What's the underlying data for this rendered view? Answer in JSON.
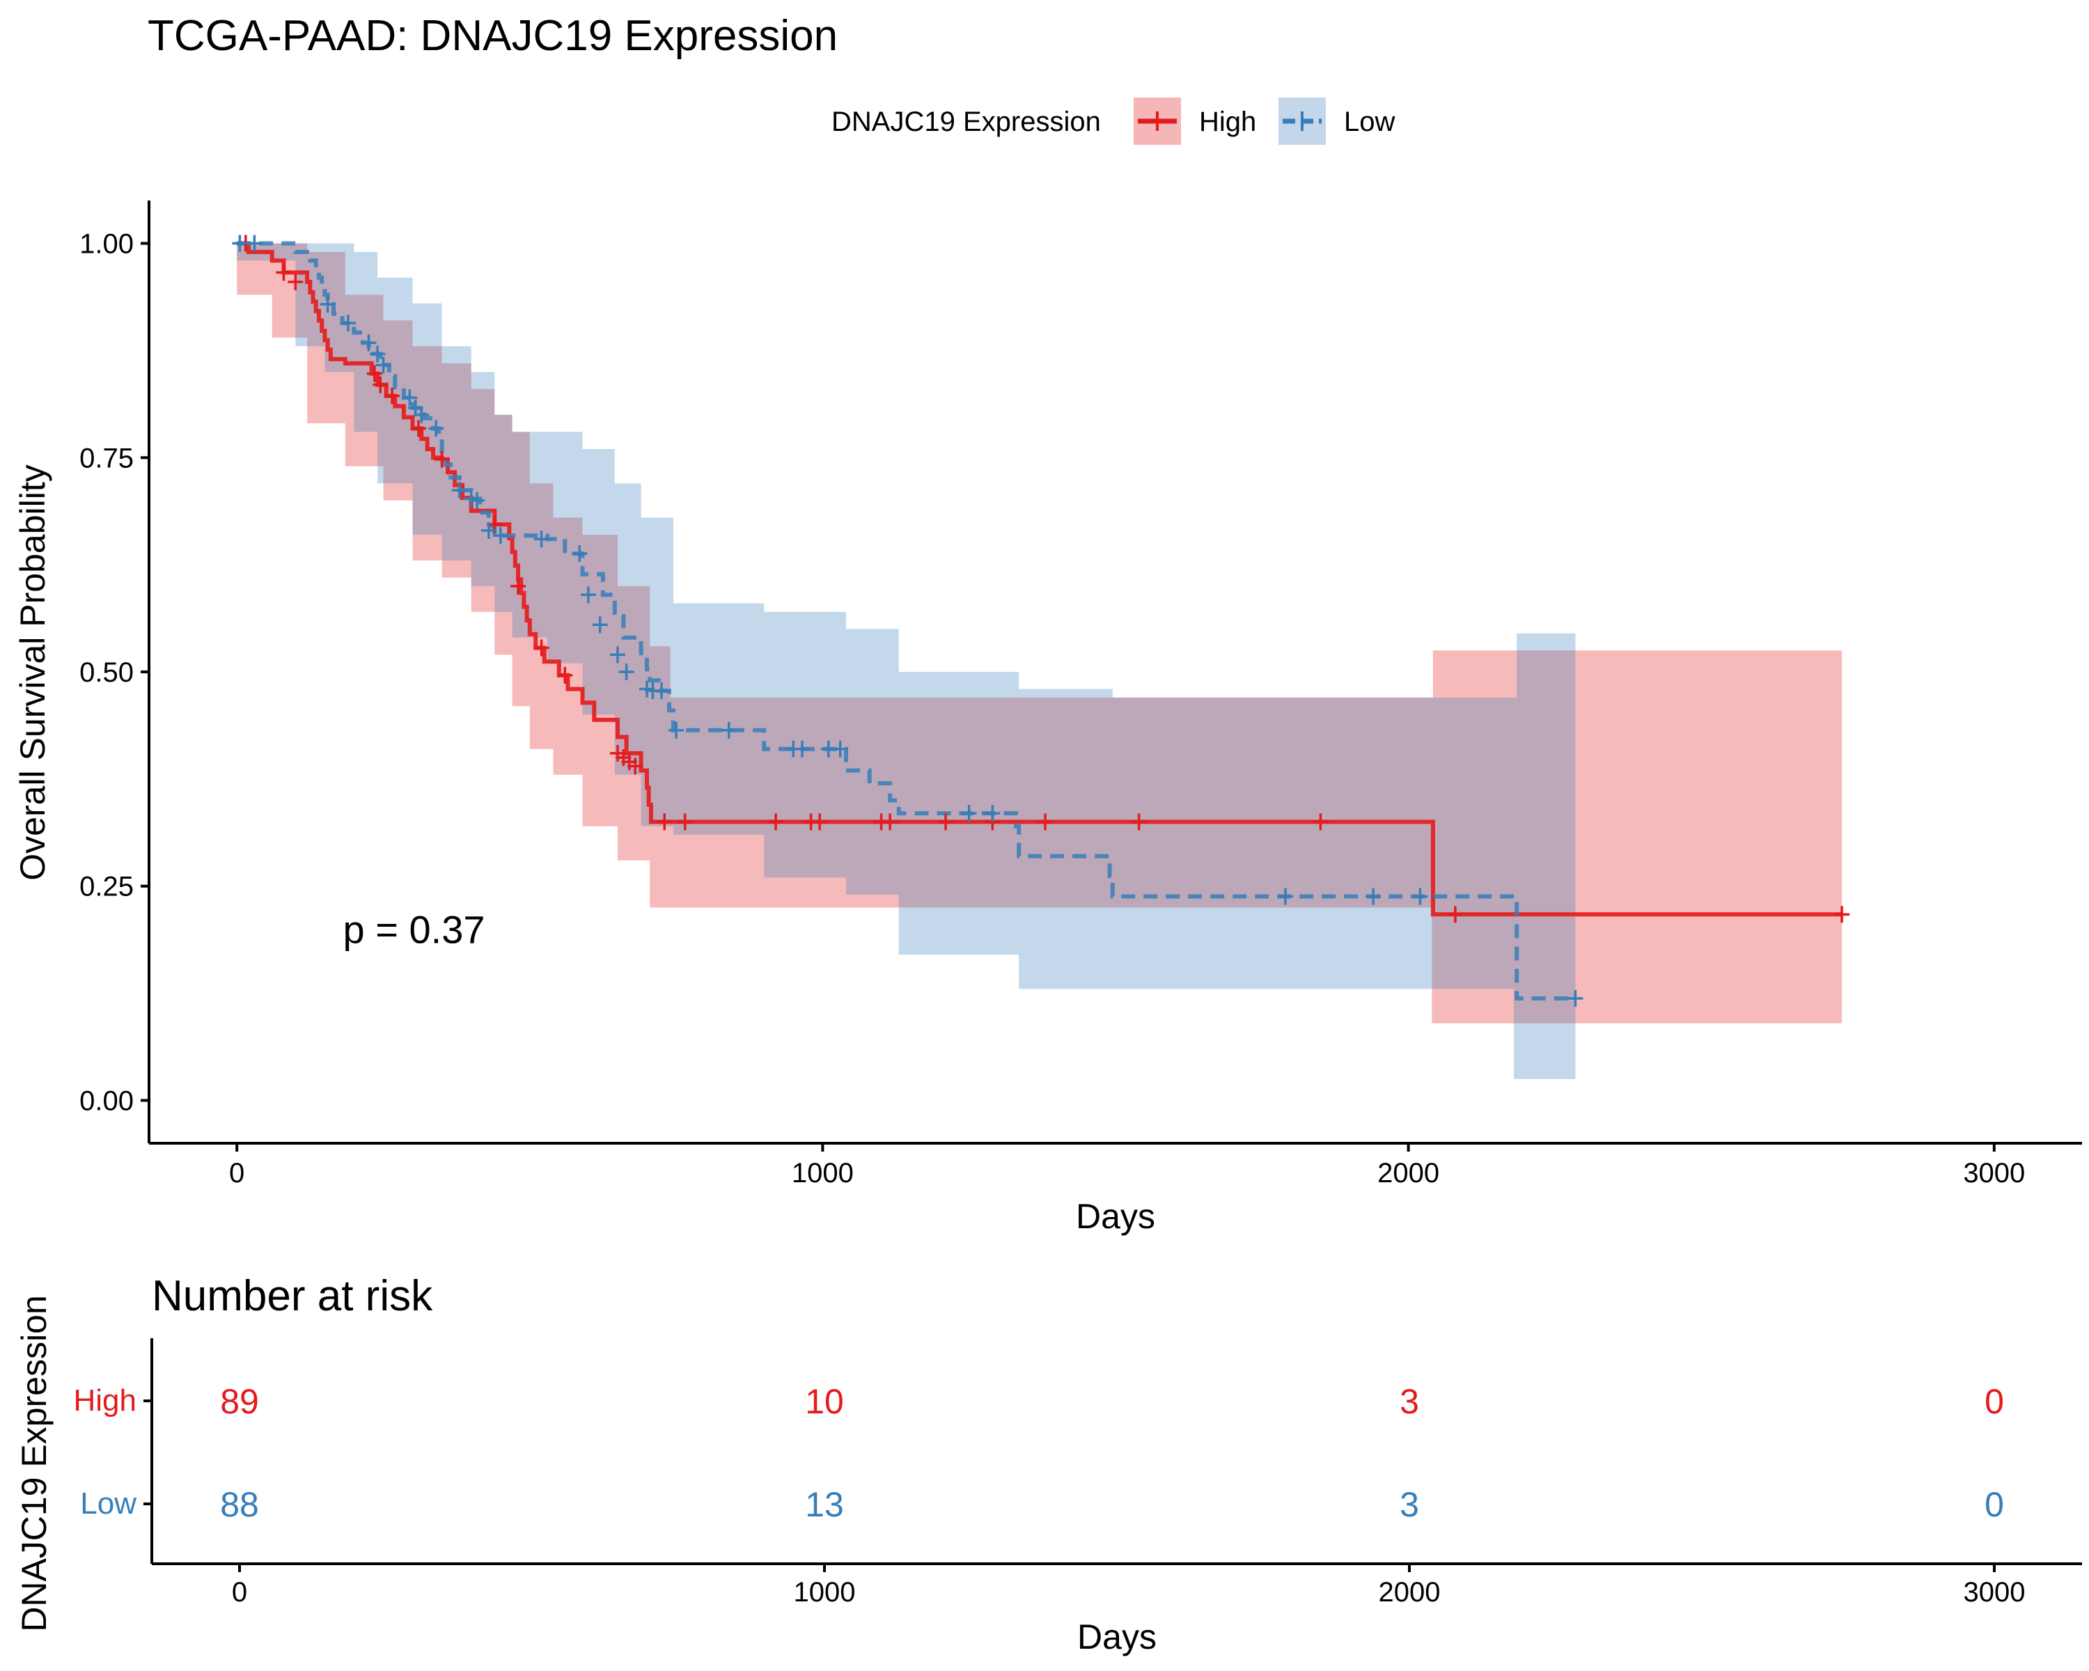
{
  "chart_data": [
    {
      "type": "line",
      "subtype": "kaplan-meier",
      "title": "TCGA-PAAD: DNAJC19 Expression",
      "xlabel": "Days",
      "ylabel": "Overall Survival Probability",
      "xlim": [
        -150,
        3150
      ],
      "ylim": [
        -0.05,
        1.05
      ],
      "x_ticks": [
        0,
        1000,
        2000,
        3000
      ],
      "y_ticks": [
        0,
        0.25,
        0.5,
        0.75,
        1.0
      ],
      "y_tick_labels": [
        "0.00",
        "0.25",
        "0.50",
        "0.75",
        "1.00"
      ],
      "legend": {
        "title": "DNAJC19 Expression",
        "position": "top"
      },
      "annotation": "p = 0.37",
      "annotation_pos": {
        "x": 300,
        "y": 0.2
      },
      "grid": false,
      "series": [
        {
          "name": "High",
          "color": "#E41A1C",
          "dash": "solid",
          "steps": [
            [
              0,
              1.0
            ],
            [
              20,
              0.99
            ],
            [
              60,
              0.98
            ],
            [
              80,
              0.966
            ],
            [
              120,
              0.955
            ],
            [
              125,
              0.943
            ],
            [
              130,
              0.932
            ],
            [
              135,
              0.921
            ],
            [
              140,
              0.91
            ],
            [
              145,
              0.898
            ],
            [
              150,
              0.887
            ],
            [
              155,
              0.876
            ],
            [
              160,
              0.865
            ],
            [
              185,
              0.86
            ],
            [
              230,
              0.848
            ],
            [
              240,
              0.835
            ],
            [
              255,
              0.822
            ],
            [
              270,
              0.81
            ],
            [
              285,
              0.797
            ],
            [
              300,
              0.784
            ],
            [
              315,
              0.772
            ],
            [
              325,
              0.76
            ],
            [
              335,
              0.75
            ],
            [
              350,
              0.748
            ],
            [
              360,
              0.733
            ],
            [
              372,
              0.718
            ],
            [
              385,
              0.703
            ],
            [
              400,
              0.688
            ],
            [
              440,
              0.672
            ],
            [
              465,
              0.656
            ],
            [
              470,
              0.64
            ],
            [
              475,
              0.624
            ],
            [
              480,
              0.608
            ],
            [
              485,
              0.592
            ],
            [
              490,
              0.576
            ],
            [
              495,
              0.56
            ],
            [
              500,
              0.544
            ],
            [
              510,
              0.528
            ],
            [
              525,
              0.512
            ],
            [
              550,
              0.496
            ],
            [
              565,
              0.48
            ],
            [
              590,
              0.464
            ],
            [
              610,
              0.444
            ],
            [
              650,
              0.424
            ],
            [
              665,
              0.405
            ],
            [
              690,
              0.385
            ],
            [
              700,
              0.365
            ],
            [
              703,
              0.345
            ],
            [
              707,
              0.325
            ],
            [
              2040,
              0.325
            ],
            [
              2042,
              0.217
            ],
            [
              2740,
              0.217
            ]
          ],
          "censor": [
            [
              15,
              1.0
            ],
            [
              80,
              0.966
            ],
            [
              100,
              0.955
            ],
            [
              235,
              0.848
            ],
            [
              245,
              0.835
            ],
            [
              265,
              0.822
            ],
            [
              310,
              0.784
            ],
            [
              350,
              0.748
            ],
            [
              440,
              0.672
            ],
            [
              480,
              0.6
            ],
            [
              520,
              0.528
            ],
            [
              560,
              0.496
            ],
            [
              650,
              0.405
            ],
            [
              660,
              0.4
            ],
            [
              670,
              0.395
            ],
            [
              680,
              0.39
            ],
            [
              730,
              0.325
            ],
            [
              765,
              0.325
            ],
            [
              920,
              0.325
            ],
            [
              980,
              0.325
            ],
            [
              995,
              0.325
            ],
            [
              1100,
              0.325
            ],
            [
              1115,
              0.325
            ],
            [
              1210,
              0.325
            ],
            [
              1290,
              0.325
            ],
            [
              1380,
              0.325
            ],
            [
              1540,
              0.325
            ],
            [
              1850,
              0.325
            ],
            [
              2080,
              0.217
            ],
            [
              2740,
              0.217
            ]
          ],
          "ci_upper": [
            [
              0,
              1.0
            ],
            [
              60,
              1.0
            ],
            [
              120,
              0.99
            ],
            [
              185,
              0.94
            ],
            [
              250,
              0.91
            ],
            [
              300,
              0.88
            ],
            [
              350,
              0.86
            ],
            [
              400,
              0.83
            ],
            [
              440,
              0.8
            ],
            [
              470,
              0.78
            ],
            [
              500,
              0.72
            ],
            [
              540,
              0.68
            ],
            [
              590,
              0.66
            ],
            [
              650,
              0.6
            ],
            [
              705,
              0.53
            ],
            [
              740,
              0.47
            ],
            [
              2040,
              0.47
            ],
            [
              2042,
              0.525
            ],
            [
              2740,
              0.525
            ]
          ],
          "ci_lower": [
            [
              0,
              1.0
            ],
            [
              60,
              0.94
            ],
            [
              120,
              0.89
            ],
            [
              185,
              0.79
            ],
            [
              250,
              0.74
            ],
            [
              300,
              0.7
            ],
            [
              350,
              0.63
            ],
            [
              400,
              0.61
            ],
            [
              440,
              0.57
            ],
            [
              470,
              0.52
            ],
            [
              500,
              0.46
            ],
            [
              540,
              0.41
            ],
            [
              590,
              0.38
            ],
            [
              650,
              0.32
            ],
            [
              705,
              0.28
            ],
            [
              740,
              0.225
            ],
            [
              2040,
              0.225
            ],
            [
              2042,
              0.09
            ],
            [
              2740,
              0.09
            ]
          ]
        },
        {
          "name": "Low",
          "color": "#377EB8",
          "dash": "dashed",
          "steps": [
            [
              0,
              1.0
            ],
            [
              100,
              0.99
            ],
            [
              125,
              0.98
            ],
            [
              135,
              0.97
            ],
            [
              140,
              0.96
            ],
            [
              145,
              0.95
            ],
            [
              150,
              0.94
            ],
            [
              155,
              0.929
            ],
            [
              165,
              0.918
            ],
            [
              180,
              0.907
            ],
            [
              200,
              0.896
            ],
            [
              215,
              0.884
            ],
            [
              225,
              0.871
            ],
            [
              245,
              0.858
            ],
            [
              260,
              0.845
            ],
            [
              270,
              0.832
            ],
            [
              285,
              0.82
            ],
            [
              300,
              0.808
            ],
            [
              320,
              0.796
            ],
            [
              335,
              0.784
            ],
            [
              345,
              0.772
            ],
            [
              350,
              0.757
            ],
            [
              355,
              0.742
            ],
            [
              365,
              0.727
            ],
            [
              380,
              0.712
            ],
            [
              400,
              0.702
            ],
            [
              415,
              0.686
            ],
            [
              430,
              0.67
            ],
            [
              440,
              0.659
            ],
            [
              530,
              0.655
            ],
            [
              560,
              0.638
            ],
            [
              590,
              0.614
            ],
            [
              625,
              0.59
            ],
            [
              645,
              0.565
            ],
            [
              660,
              0.54
            ],
            [
              690,
              0.517
            ],
            [
              700,
              0.503
            ],
            [
              705,
              0.49
            ],
            [
              720,
              0.478
            ],
            [
              738,
              0.455
            ],
            [
              745,
              0.432
            ],
            [
              760,
              0.432
            ],
            [
              900,
              0.41
            ],
            [
              1000,
              0.41
            ],
            [
              1040,
              0.385
            ],
            [
              1080,
              0.37
            ],
            [
              1115,
              0.35
            ],
            [
              1130,
              0.335
            ],
            [
              1330,
              0.32
            ],
            [
              1335,
              0.285
            ],
            [
              1490,
              0.262
            ],
            [
              1495,
              0.238
            ],
            [
              2180,
              0.238
            ],
            [
              2185,
              0.119
            ],
            [
              2285,
              0.119
            ]
          ],
          "censor": [
            [
              5,
              1.0
            ],
            [
              30,
              1.0
            ],
            [
              155,
              0.929
            ],
            [
              190,
              0.907
            ],
            [
              225,
              0.884
            ],
            [
              240,
              0.871
            ],
            [
              250,
              0.858
            ],
            [
              295,
              0.82
            ],
            [
              305,
              0.808
            ],
            [
              315,
              0.8
            ],
            [
              340,
              0.784
            ],
            [
              380,
              0.712
            ],
            [
              400,
              0.702
            ],
            [
              410,
              0.7
            ],
            [
              430,
              0.665
            ],
            [
              450,
              0.659
            ],
            [
              520,
              0.655
            ],
            [
              585,
              0.638
            ],
            [
              600,
              0.59
            ],
            [
              620,
              0.555
            ],
            [
              650,
              0.52
            ],
            [
              665,
              0.5
            ],
            [
              700,
              0.48
            ],
            [
              710,
              0.478
            ],
            [
              725,
              0.478
            ],
            [
              750,
              0.432
            ],
            [
              840,
              0.432
            ],
            [
              950,
              0.41
            ],
            [
              965,
              0.41
            ],
            [
              1010,
              0.41
            ],
            [
              1030,
              0.41
            ],
            [
              1250,
              0.335
            ],
            [
              1290,
              0.335
            ],
            [
              1790,
              0.238
            ],
            [
              1940,
              0.238
            ],
            [
              2020,
              0.238
            ],
            [
              2285,
              0.119
            ]
          ],
          "ci_upper": [
            [
              0,
              1.0
            ],
            [
              100,
              1.0
            ],
            [
              150,
              1.0
            ],
            [
              200,
              0.99
            ],
            [
              240,
              0.96
            ],
            [
              300,
              0.93
            ],
            [
              350,
              0.88
            ],
            [
              400,
              0.85
            ],
            [
              440,
              0.8
            ],
            [
              470,
              0.78
            ],
            [
              530,
              0.78
            ],
            [
              590,
              0.76
            ],
            [
              645,
              0.72
            ],
            [
              690,
              0.68
            ],
            [
              745,
              0.58
            ],
            [
              900,
              0.57
            ],
            [
              1040,
              0.55
            ],
            [
              1130,
              0.5
            ],
            [
              1335,
              0.48
            ],
            [
              1495,
              0.47
            ],
            [
              2180,
              0.47
            ],
            [
              2185,
              0.545
            ],
            [
              2285,
              0.545
            ]
          ],
          "ci_lower": [
            [
              0,
              1.0
            ],
            [
              100,
              0.98
            ],
            [
              150,
              0.88
            ],
            [
              200,
              0.85
            ],
            [
              240,
              0.78
            ],
            [
              300,
              0.72
            ],
            [
              350,
              0.66
            ],
            [
              400,
              0.63
            ],
            [
              440,
              0.6
            ],
            [
              470,
              0.57
            ],
            [
              530,
              0.54
            ],
            [
              590,
              0.51
            ],
            [
              645,
              0.45
            ],
            [
              690,
              0.38
            ],
            [
              745,
              0.32
            ],
            [
              900,
              0.31
            ],
            [
              1040,
              0.26
            ],
            [
              1130,
              0.24
            ],
            [
              1335,
              0.17
            ],
            [
              1495,
              0.13
            ],
            [
              2180,
              0.13
            ],
            [
              2185,
              0.025
            ],
            [
              2285,
              0.025
            ]
          ]
        }
      ]
    },
    {
      "type": "table",
      "title": "Number at risk",
      "xlabel": "Days",
      "ylabel": "DNAJC19 Expression",
      "xlim": [
        -150,
        3150
      ],
      "x_ticks": [
        0,
        1000,
        2000,
        3000
      ],
      "rows": [
        {
          "name": "High",
          "color": "#E41A1C",
          "values": [
            89,
            10,
            3,
            0
          ]
        },
        {
          "name": "Low",
          "color": "#377EB8",
          "values": [
            88,
            13,
            3,
            0
          ]
        }
      ]
    }
  ]
}
